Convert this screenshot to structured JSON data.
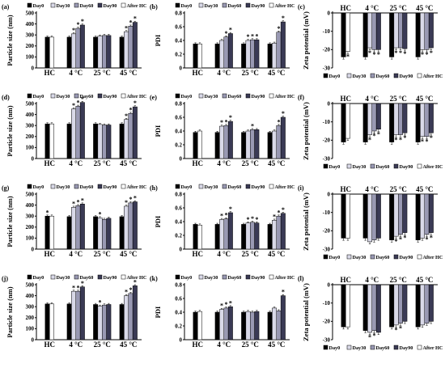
{
  "colors": {
    "Day0": "#000000",
    "Day30": "#d9d9e8",
    "Day60": "#9999b3",
    "Day90": "#3a3a55",
    "After HC": "#ffffff"
  },
  "legend": [
    "Day0",
    "Day30",
    "Day60",
    "Day90",
    "After HC"
  ],
  "chart_data": [
    {
      "id": "a",
      "panel_label": "(a)",
      "type": "bar",
      "ylabel": "Particle size (nm)",
      "ylim": [
        0,
        500
      ],
      "yticks": [
        0,
        100,
        200,
        300,
        400,
        500
      ],
      "categories": [
        "HC",
        "4 °C",
        "25 °C",
        "45 °C"
      ],
      "legend_position": "top",
      "series": [
        {
          "name": "Day0",
          "values": [
            280,
            280,
            280,
            280
          ]
        },
        {
          "name": "Day30",
          "values": [
            null,
            310,
            290,
            330
          ]
        },
        {
          "name": "Day60",
          "values": [
            null,
            360,
            295,
            380
          ]
        },
        {
          "name": "Day90",
          "values": [
            null,
            390,
            295,
            415
          ]
        },
        {
          "name": "After HC",
          "values": [
            280,
            null,
            null,
            null
          ]
        }
      ],
      "stars": [
        {
          "cat": 1,
          "series": [
            1,
            2,
            3
          ]
        },
        {
          "cat": 3,
          "series": [
            1,
            2,
            3
          ]
        }
      ]
    },
    {
      "id": "b",
      "panel_label": "(b)",
      "type": "bar",
      "ylabel": "PDI",
      "ylim": [
        0,
        0.8
      ],
      "yticks": [
        0,
        0.2,
        0.4,
        0.6,
        0.8
      ],
      "categories": [
        "HC",
        "4 °C",
        "25 °C",
        "45 °C"
      ],
      "legend_position": "top",
      "series": [
        {
          "name": "Day0",
          "values": [
            0.35,
            0.35,
            0.35,
            0.35
          ]
        },
        {
          "name": "Day30",
          "values": [
            null,
            0.4,
            0.4,
            0.36
          ]
        },
        {
          "name": "Day60",
          "values": [
            null,
            0.45,
            0.41,
            0.52
          ]
        },
        {
          "name": "Day90",
          "values": [
            null,
            0.5,
            0.41,
            0.67
          ]
        },
        {
          "name": "After HC",
          "values": [
            0.35,
            null,
            null,
            null
          ]
        }
      ],
      "stars": [
        {
          "cat": 1,
          "series": [
            2,
            3
          ]
        },
        {
          "cat": 2,
          "series": [
            1,
            2,
            3
          ]
        },
        {
          "cat": 3,
          "series": [
            2,
            3
          ]
        }
      ]
    },
    {
      "id": "c",
      "panel_label": "(c)",
      "type": "bar",
      "ylabel": "Zeta potential (mV)",
      "ylim": [
        -30,
        0
      ],
      "yticks": [
        0,
        -10,
        -20,
        -30
      ],
      "categories": [
        "HC",
        "4 °C",
        "25 °C",
        "45 °C"
      ],
      "legend_position": "bottom",
      "negative": true,
      "series": [
        {
          "name": "Day0",
          "values": [
            -24,
            -24,
            -24,
            -24
          ]
        },
        {
          "name": "Day30",
          "values": [
            null,
            -19,
            -19,
            -20
          ]
        },
        {
          "name": "Day60",
          "values": [
            null,
            -20,
            -19,
            -20
          ]
        },
        {
          "name": "Day90",
          "values": [
            null,
            -20,
            -19.5,
            -19
          ]
        },
        {
          "name": "After HC",
          "values": [
            -21,
            null,
            null,
            null
          ]
        }
      ],
      "stars": [
        {
          "cat": 1,
          "series": [
            1,
            2,
            3
          ]
        },
        {
          "cat": 2,
          "series": [
            1,
            2,
            3
          ]
        },
        {
          "cat": 3,
          "series": [
            1,
            2,
            3
          ]
        },
        {
          "cat": 0,
          "series": [
            4
          ]
        }
      ]
    },
    {
      "id": "d",
      "panel_label": "(d)",
      "type": "bar",
      "ylabel": "Particle size (nm)",
      "ylim": [
        0,
        500
      ],
      "yticks": [
        0,
        100,
        200,
        300,
        400,
        500
      ],
      "categories": [
        "HC",
        "4 °C",
        "25 °C",
        "45 °C"
      ],
      "legend_position": "top",
      "series": [
        {
          "name": "Day0",
          "values": [
            315,
            315,
            315,
            315
          ]
        },
        {
          "name": "Day30",
          "values": [
            null,
            450,
            310,
            355
          ]
        },
        {
          "name": "Day60",
          "values": [
            null,
            475,
            305,
            410
          ]
        },
        {
          "name": "Day90",
          "values": [
            null,
            510,
            305,
            470
          ]
        },
        {
          "name": "After HC",
          "values": [
            315,
            null,
            null,
            null
          ]
        }
      ],
      "stars": [
        {
          "cat": 1,
          "series": [
            1,
            2,
            3
          ]
        },
        {
          "cat": 3,
          "series": [
            1,
            2,
            3
          ]
        }
      ]
    },
    {
      "id": "e",
      "panel_label": "(e)",
      "type": "bar",
      "ylabel": "PDI",
      "ylim": [
        0,
        0.8
      ],
      "yticks": [
        0,
        0.2,
        0.4,
        0.6,
        0.8
      ],
      "categories": [
        "HC",
        "4 °C",
        "25 °C",
        "45 °C"
      ],
      "legend_position": "top",
      "series": [
        {
          "name": "Day0",
          "values": [
            0.38,
            0.38,
            0.38,
            0.38
          ]
        },
        {
          "name": "Day30",
          "values": [
            null,
            0.47,
            0.4,
            0.4
          ]
        },
        {
          "name": "Day60",
          "values": [
            null,
            0.48,
            0.42,
            0.48
          ]
        },
        {
          "name": "Day90",
          "values": [
            null,
            0.54,
            0.42,
            0.6
          ]
        },
        {
          "name": "After HC",
          "values": [
            0.4,
            null,
            null,
            null
          ]
        }
      ],
      "stars": [
        {
          "cat": 1,
          "series": [
            1,
            2,
            3
          ]
        },
        {
          "cat": 2,
          "series": [
            2
          ]
        },
        {
          "cat": 3,
          "series": [
            2,
            3
          ]
        }
      ]
    },
    {
      "id": "f",
      "panel_label": "(f)",
      "type": "bar",
      "ylabel": "Zeta potential (mV)",
      "ylim": [
        -30,
        0
      ],
      "yticks": [
        0,
        -10,
        -20,
        -30
      ],
      "categories": [
        "HC",
        "4 °C",
        "25 °C",
        "45 °C"
      ],
      "legend_position": "bottom",
      "negative": true,
      "series": [
        {
          "name": "Day0",
          "values": [
            -21,
            -21,
            -21,
            -21
          ]
        },
        {
          "name": "Day30",
          "values": [
            null,
            -17,
            -17,
            -18
          ]
        },
        {
          "name": "Day60",
          "values": [
            null,
            -15,
            -17,
            -18
          ]
        },
        {
          "name": "Day90",
          "values": [
            null,
            -14,
            -16,
            -16
          ]
        },
        {
          "name": "After HC",
          "values": [
            -19,
            null,
            null,
            null
          ]
        }
      ],
      "stars": [
        {
          "cat": 1,
          "series": [
            1,
            2,
            3
          ]
        },
        {
          "cat": 2,
          "series": [
            1,
            2,
            3
          ]
        },
        {
          "cat": 3,
          "series": [
            1,
            2,
            3
          ]
        }
      ]
    },
    {
      "id": "g",
      "panel_label": "(g)",
      "type": "bar",
      "ylabel": "Particle size (nm)",
      "ylim": [
        0,
        500
      ],
      "yticks": [
        0,
        100,
        200,
        300,
        400,
        500
      ],
      "categories": [
        "HC",
        "4 °C",
        "25 °C",
        "45 °C"
      ],
      "legend_position": "top",
      "series": [
        {
          "name": "Day0",
          "values": [
            300,
            295,
            295,
            295
          ]
        },
        {
          "name": "Day30",
          "values": [
            null,
            380,
            285,
            390
          ]
        },
        {
          "name": "Day60",
          "values": [
            null,
            395,
            270,
            420
          ]
        },
        {
          "name": "Day90",
          "values": [
            null,
            410,
            280,
            430
          ]
        },
        {
          "name": "After HC",
          "values": [
            300,
            null,
            null,
            null
          ]
        }
      ],
      "stars": [
        {
          "cat": 0,
          "series": [
            0
          ]
        },
        {
          "cat": 1,
          "series": [
            1,
            2,
            3
          ]
        },
        {
          "cat": 2,
          "series": [
            1
          ]
        },
        {
          "cat": 3,
          "series": [
            1,
            2,
            3
          ]
        }
      ]
    },
    {
      "id": "h",
      "panel_label": "(h)",
      "type": "bar",
      "ylabel": "PDI",
      "ylim": [
        0,
        0.8
      ],
      "yticks": [
        0,
        0.2,
        0.4,
        0.6,
        0.8
      ],
      "categories": [
        "HC",
        "4 °C",
        "25 °C",
        "45 °C"
      ],
      "legend_position": "top",
      "series": [
        {
          "name": "Day0",
          "values": [
            0.36,
            0.36,
            0.36,
            0.36
          ]
        },
        {
          "name": "Day30",
          "values": [
            null,
            0.43,
            0.38,
            0.42
          ]
        },
        {
          "name": "Day60",
          "values": [
            null,
            0.44,
            0.39,
            0.48
          ]
        },
        {
          "name": "Day90",
          "values": [
            null,
            0.53,
            0.38,
            0.52
          ]
        },
        {
          "name": "After HC",
          "values": [
            0.35,
            null,
            null,
            null
          ]
        }
      ],
      "stars": [
        {
          "cat": 1,
          "series": [
            1,
            2,
            3
          ]
        },
        {
          "cat": 2,
          "series": [
            1,
            2,
            3
          ]
        },
        {
          "cat": 3,
          "series": [
            1,
            2,
            3
          ]
        }
      ]
    },
    {
      "id": "i",
      "panel_label": "(i)",
      "type": "bar",
      "ylabel": "Zeta potential (mV)",
      "ylim": [
        -30,
        0
      ],
      "yticks": [
        0,
        -10,
        -20,
        -30
      ],
      "categories": [
        "HC",
        "4 °C",
        "25 °C",
        "45 °C"
      ],
      "legend_position": "bottom",
      "negative": true,
      "series": [
        {
          "name": "Day0",
          "values": [
            -24,
            -24,
            -25,
            -25
          ]
        },
        {
          "name": "Day30",
          "values": [
            null,
            -26,
            -23,
            -24
          ]
        },
        {
          "name": "Day60",
          "values": [
            null,
            -25,
            -22,
            -22
          ]
        },
        {
          "name": "Day90",
          "values": [
            null,
            -24,
            -21,
            -21
          ]
        },
        {
          "name": "After HC",
          "values": [
            -24,
            null,
            null,
            null
          ]
        }
      ],
      "stars": [
        {
          "cat": 2,
          "series": [
            1,
            2,
            3
          ]
        },
        {
          "cat": 3,
          "series": [
            2,
            3
          ]
        }
      ]
    },
    {
      "id": "j",
      "panel_label": "(j)",
      "type": "bar",
      "ylabel": "Particle size (nm)",
      "ylim": [
        0,
        500
      ],
      "yticks": [
        0,
        100,
        200,
        300,
        400,
        500
      ],
      "categories": [
        "HC",
        "4 °C",
        "25 °C",
        "45 °C"
      ],
      "legend_position": "top",
      "series": [
        {
          "name": "Day0",
          "values": [
            325,
            325,
            320,
            320
          ]
        },
        {
          "name": "Day30",
          "values": [
            null,
            440,
            305,
            400
          ]
        },
        {
          "name": "Day60",
          "values": [
            null,
            440,
            315,
            420
          ]
        },
        {
          "name": "Day90",
          "values": [
            null,
            480,
            320,
            490
          ]
        },
        {
          "name": "After HC",
          "values": [
            325,
            null,
            null,
            null
          ]
        }
      ],
      "stars": [
        {
          "cat": 1,
          "series": [
            1,
            2,
            3
          ]
        },
        {
          "cat": 2,
          "series": [
            1
          ]
        },
        {
          "cat": 3,
          "series": [
            1,
            2,
            3
          ]
        }
      ]
    },
    {
      "id": "k",
      "panel_label": "(k)",
      "type": "bar",
      "ylabel": "PDI",
      "ylim": [
        0,
        0.8
      ],
      "yticks": [
        0,
        0.2,
        0.4,
        0.6,
        0.8
      ],
      "categories": [
        "HC",
        "4 °C",
        "25 °C",
        "45 °C"
      ],
      "legend_position": "top",
      "series": [
        {
          "name": "Day0",
          "values": [
            0.4,
            0.4,
            0.4,
            0.4
          ]
        },
        {
          "name": "Day30",
          "values": [
            null,
            0.44,
            0.41,
            0.46
          ]
        },
        {
          "name": "Day60",
          "values": [
            null,
            0.46,
            0.4,
            0.42
          ]
        },
        {
          "name": "Day90",
          "values": [
            null,
            0.48,
            0.41,
            0.64
          ]
        },
        {
          "name": "After HC",
          "values": [
            0.41,
            null,
            null,
            null
          ]
        }
      ],
      "stars": [
        {
          "cat": 1,
          "series": [
            1,
            2,
            3
          ]
        },
        {
          "cat": 3,
          "series": [
            3
          ]
        }
      ]
    },
    {
      "id": "l",
      "panel_label": "(l)",
      "type": "bar",
      "ylabel": "Zeta potential (mV)",
      "ylim": [
        -30,
        0
      ],
      "yticks": [
        0,
        -10,
        -20,
        -30
      ],
      "categories": [
        "HC",
        "4 °C",
        "25 °C",
        "45 °C"
      ],
      "legend_position": "bottom",
      "negative": true,
      "series": [
        {
          "name": "Day0",
          "values": [
            -23,
            -25,
            -23,
            -23
          ]
        },
        {
          "name": "Day30",
          "values": [
            null,
            -26,
            -22,
            -22
          ]
        },
        {
          "name": "Day60",
          "values": [
            null,
            -25,
            -21,
            -21
          ]
        },
        {
          "name": "Day90",
          "values": [
            null,
            -26,
            -20,
            -20
          ]
        },
        {
          "name": "After HC",
          "values": [
            -23,
            null,
            null,
            null
          ]
        }
      ],
      "stars": [
        {
          "cat": 1,
          "series": [
            1,
            2
          ]
        },
        {
          "cat": 2,
          "series": [
            1,
            2
          ]
        }
      ]
    }
  ]
}
